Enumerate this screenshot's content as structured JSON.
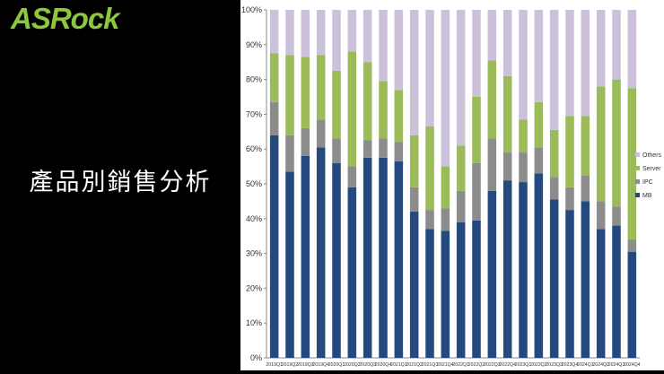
{
  "brand": {
    "logo_text": "ASRock",
    "logo_color": "#8dc63f"
  },
  "slide": {
    "title": "產品別銷售分析"
  },
  "chart_data": {
    "type": "bar",
    "stacked": true,
    "percent": true,
    "categories": [
      "2019Q1",
      "2019Q2",
      "2019Q3",
      "2019Q4",
      "2020Q1",
      "2020Q2",
      "2020Q3",
      "2020Q4",
      "2021Q1",
      "2021Q2",
      "2021Q3",
      "2021Q4",
      "2022Q1",
      "2022Q2",
      "2022Q3",
      "2022Q4",
      "2023Q1",
      "2023Q2",
      "2023Q3",
      "2023Q4",
      "2024Q1",
      "2024Q2",
      "2024Q3",
      "2024Q4"
    ],
    "series": [
      {
        "name": "MB",
        "color": "#24497f",
        "values": [
          64,
          53.5,
          58,
          60.5,
          56,
          49,
          57.5,
          57.5,
          56.5,
          42,
          37,
          36.5,
          39,
          39.5,
          48,
          51,
          50.5,
          53,
          45.5,
          42.5,
          45,
          37,
          38,
          30.5
        ]
      },
      {
        "name": "IPC",
        "color": "#8c8c8c",
        "values": [
          9.5,
          10.5,
          8,
          8,
          7,
          6,
          5,
          5.5,
          5.5,
          7,
          5.5,
          6.5,
          9,
          16.5,
          15,
          8,
          8.5,
          7.5,
          6.5,
          6.5,
          7.5,
          8,
          5.5,
          3.5
        ]
      },
      {
        "name": "Server",
        "color": "#9bbb59",
        "values": [
          14,
          23,
          20.5,
          18.5,
          19.5,
          33,
          22.5,
          16.5,
          15,
          15,
          24,
          12,
          13,
          19,
          22.5,
          22,
          9.5,
          13,
          13.5,
          20.5,
          17,
          33,
          36.5,
          43.5
        ]
      },
      {
        "name": "Others",
        "color": "#ccc1da",
        "values": [
          12.5,
          13,
          13.5,
          13,
          17.5,
          12,
          15,
          20.5,
          23,
          36,
          33.5,
          45,
          39,
          25,
          14.5,
          19,
          31.5,
          26.5,
          34.5,
          30.5,
          30.5,
          22,
          20,
          22.5
        ]
      }
    ],
    "ylim": [
      0,
      100
    ],
    "yticks": [
      "0%",
      "10%",
      "20%",
      "30%",
      "40%",
      "50%",
      "60%",
      "70%",
      "80%",
      "90%",
      "100%"
    ],
    "grid": false,
    "legend": {
      "position": "right",
      "entries": [
        "Others",
        "Server",
        "IPC",
        "MB"
      ]
    }
  }
}
